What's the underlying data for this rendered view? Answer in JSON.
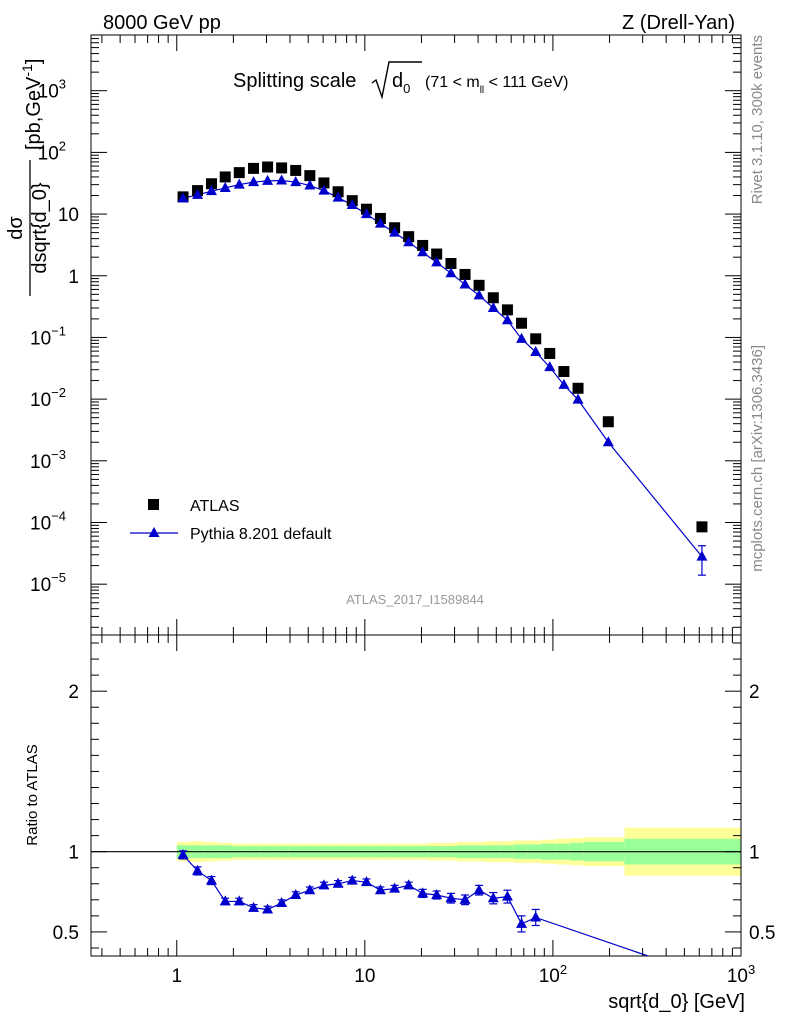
{
  "header": {
    "left": "8000 GeV pp",
    "right": "Z (Drell-Yan)"
  },
  "side_labels": {
    "version": "Rivet 3.1.10,  300k events",
    "source": "mcplots.cern.ch [arXiv:1306.3436]"
  },
  "analysis_id": "ATLAS_2017_I1589844",
  "chart_data": [
    {
      "type": "scatter",
      "title_main": "Splitting scale",
      "title_sub": "d",
      "title_sub_index": "0",
      "title_cut_left": "(71 < m",
      "title_cut_index": "ll",
      "title_cut_right": "< 111 GeV)",
      "xlabel": "sqrt{d_0} [GeV]",
      "ylabel_num": "dσ",
      "ylabel_den": "dsqrt{d_0}",
      "ylabel_unit": "[pb,GeV",
      "ylabel_unit_sup": "-1",
      "ylabel_unit_close": "]",
      "x_scale": "log",
      "y_scale": "log",
      "xlim": [
        0.35,
        1000
      ],
      "ylim": [
        1.5e-06,
        8000
      ],
      "x_ticks": [
        {
          "base": "1",
          "exp": ""
        },
        {
          "base": "10",
          "exp": ""
        },
        {
          "base": "10",
          "exp": "2"
        },
        {
          "base": "10",
          "exp": "3"
        }
      ],
      "y_ticks": [
        {
          "base": "10",
          "exp": "3"
        },
        {
          "base": "10",
          "exp": "2"
        },
        {
          "base": "10",
          "exp": ""
        },
        {
          "base": "1",
          "exp": ""
        },
        {
          "base": "10",
          "exp": "−1"
        },
        {
          "base": "10",
          "exp": "−2"
        },
        {
          "base": "10",
          "exp": "−3"
        },
        {
          "base": "10",
          "exp": "−4"
        },
        {
          "base": "10",
          "exp": "−5"
        }
      ],
      "legend_position": "lower-left",
      "series": [
        {
          "name": "ATLAS",
          "marker": "square",
          "color": "#000000",
          "x": [
            1.08,
            1.29,
            1.53,
            1.81,
            2.15,
            2.56,
            3.04,
            3.61,
            4.29,
            5.1,
            6.06,
            7.21,
            8.57,
            10.2,
            12.1,
            14.4,
            17.1,
            20.3,
            24.1,
            28.7,
            34.1,
            40.5,
            48.2,
            57.3,
            68.1,
            81.0,
            96.2,
            114.4,
            136,
            197,
            620
          ],
          "y": [
            19,
            24,
            31,
            40,
            47,
            55,
            58,
            56,
            51,
            42,
            32,
            23,
            16.5,
            12,
            8.5,
            6,
            4.3,
            3.1,
            2.25,
            1.58,
            1.05,
            0.7,
            0.44,
            0.28,
            0.17,
            0.095,
            0.055,
            0.028,
            0.015,
            0.0043,
            8.5e-05
          ]
        },
        {
          "name": "Pythia 8.201 default",
          "marker": "triangle",
          "color": "#0000cc",
          "x": [
            1.08,
            1.29,
            1.53,
            1.81,
            2.15,
            2.56,
            3.04,
            3.61,
            4.29,
            5.1,
            6.06,
            7.21,
            8.57,
            10.2,
            12.1,
            14.4,
            17.1,
            20.3,
            24.1,
            28.7,
            34.1,
            40.5,
            48.2,
            57.3,
            68.1,
            81.0,
            96.2,
            114.4,
            136,
            197,
            620
          ],
          "y": [
            18,
            20.5,
            23.5,
            26.5,
            30,
            33,
            34.5,
            35,
            33,
            29,
            24,
            18.5,
            14,
            10,
            7,
            5,
            3.5,
            2.4,
            1.65,
            1.1,
            0.72,
            0.48,
            0.3,
            0.19,
            0.095,
            0.058,
            0.033,
            0.017,
            0.0098,
            0.002,
            2.8e-05
          ],
          "y_err": [
            0.5,
            0.5,
            0.5,
            0.5,
            0.5,
            0.5,
            0.5,
            0.5,
            0.5,
            0.5,
            0.5,
            0.4,
            0.3,
            0.2,
            0.15,
            0.1,
            0.07,
            0.05,
            0.04,
            0.03,
            0.02,
            0.012,
            0.008,
            0.005,
            0.004,
            0.003,
            0.002,
            0.001,
            0.0005,
            0.0002,
            1.4e-05
          ]
        }
      ]
    },
    {
      "type": "scatter",
      "xlabel": "sqrt{d_0} [GeV]",
      "ylabel": "Ratio to ATLAS",
      "x_scale": "log",
      "y_scale": "linear",
      "xlim": [
        0.35,
        1000
      ],
      "ylim": [
        0.35,
        2.35
      ],
      "y_ticks": [
        "0.5",
        "1",
        "2"
      ],
      "reference_line": 1,
      "bands": {
        "edges": [
          1.0,
          1.18,
          1.4,
          1.66,
          1.97,
          2.34,
          2.78,
          3.3,
          3.92,
          4.66,
          5.53,
          6.57,
          7.8,
          9.27,
          11.0,
          13.1,
          15.5,
          18.5,
          21.9,
          26.0,
          30.9,
          36.7,
          43.6,
          51.8,
          61.6,
          73.1,
          86.9,
          103,
          123,
          146,
          240,
          1000
        ],
        "green_half_width": [
          0.04,
          0.04,
          0.04,
          0.04,
          0.035,
          0.035,
          0.035,
          0.035,
          0.035,
          0.035,
          0.035,
          0.035,
          0.035,
          0.035,
          0.035,
          0.035,
          0.035,
          0.035,
          0.035,
          0.035,
          0.04,
          0.04,
          0.04,
          0.04,
          0.045,
          0.045,
          0.05,
          0.05,
          0.055,
          0.06,
          0.08
        ],
        "yellow_half_width": [
          0.06,
          0.065,
          0.06,
          0.055,
          0.05,
          0.05,
          0.05,
          0.05,
          0.05,
          0.05,
          0.05,
          0.05,
          0.05,
          0.05,
          0.05,
          0.05,
          0.05,
          0.05,
          0.055,
          0.055,
          0.06,
          0.06,
          0.065,
          0.065,
          0.07,
          0.07,
          0.075,
          0.08,
          0.085,
          0.09,
          0.15
        ],
        "green_color": "#99ff99",
        "yellow_color": "#ffff99"
      },
      "series": [
        {
          "name": "Pythia 8.201 default",
          "marker": "triangle",
          "color": "#0000cc",
          "x": [
            1.08,
            1.29,
            1.53,
            1.81,
            2.15,
            2.56,
            3.04,
            3.61,
            4.29,
            5.1,
            6.06,
            7.21,
            8.57,
            10.2,
            12.1,
            14.4,
            17.1,
            20.3,
            24.1,
            28.7,
            34.1,
            40.5,
            48.2,
            57.3,
            68.1,
            81.0,
            320
          ],
          "y": [
            0.98,
            0.88,
            0.82,
            0.69,
            0.69,
            0.65,
            0.64,
            0.68,
            0.73,
            0.76,
            0.79,
            0.8,
            0.82,
            0.81,
            0.76,
            0.77,
            0.79,
            0.74,
            0.73,
            0.71,
            0.7,
            0.76,
            0.71,
            0.72,
            0.55,
            0.59,
            0.35
          ],
          "y_err": [
            0.025,
            0.025,
            0.025,
            0.02,
            0.02,
            0.02,
            0.02,
            0.02,
            0.02,
            0.02,
            0.02,
            0.02,
            0.02,
            0.02,
            0.02,
            0.02,
            0.02,
            0.025,
            0.025,
            0.03,
            0.03,
            0.03,
            0.035,
            0.04,
            0.05,
            0.05,
            0
          ]
        }
      ]
    }
  ]
}
